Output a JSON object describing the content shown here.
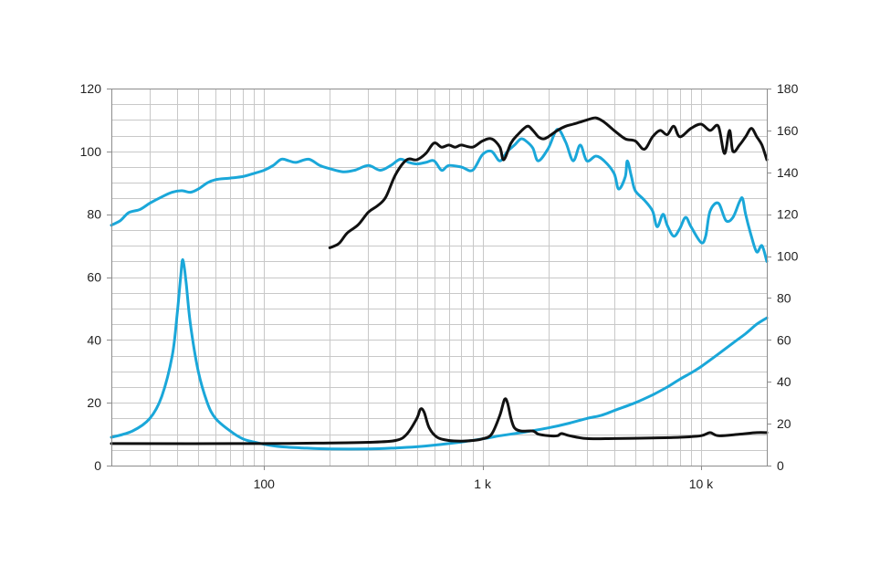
{
  "chart_data": {
    "type": "line",
    "title": "",
    "xlabel": "",
    "ylabel": "",
    "x_scale": "log",
    "xlim": [
      20,
      20000
    ],
    "ylim_left": [
      0,
      120
    ],
    "ylim_right": [
      0,
      180
    ],
    "grid": true,
    "legend": "none",
    "x_tick_labels": [
      {
        "value": 100,
        "label": "100"
      },
      {
        "value": 1000,
        "label": "1 k"
      },
      {
        "value": 10000,
        "label": "10 k"
      }
    ],
    "left_tick_labels": [
      "0",
      "20",
      "40",
      "60",
      "80",
      "100",
      "120"
    ],
    "right_tick_labels": [
      "0",
      "20",
      "40",
      "60",
      "80",
      "100",
      "120",
      "140",
      "160",
      "180"
    ],
    "colors": {
      "blue": "#1aa7d9",
      "black": "#111111",
      "grid": "#c8c8c8",
      "axis": "#8c8c8c"
    },
    "series": [
      {
        "axis": "left",
        "color": "#1aa7d9",
        "points": [
          [
            20,
            76.5
          ],
          [
            22,
            78
          ],
          [
            24,
            80.5
          ],
          [
            27,
            81.5
          ],
          [
            30,
            83.5
          ],
          [
            34,
            85.5
          ],
          [
            38,
            87
          ],
          [
            42,
            87.5
          ],
          [
            46,
            87
          ],
          [
            50,
            88
          ],
          [
            55,
            90
          ],
          [
            60,
            91
          ],
          [
            70,
            91.5
          ],
          [
            80,
            92
          ],
          [
            90,
            93
          ],
          [
            100,
            94
          ],
          [
            110,
            95.5
          ],
          [
            120,
            97.5
          ],
          [
            130,
            97
          ],
          [
            140,
            96.5
          ],
          [
            160,
            97.5
          ],
          [
            180,
            95.5
          ],
          [
            200,
            94.5
          ],
          [
            230,
            93.5
          ],
          [
            260,
            94
          ],
          [
            300,
            95.5
          ],
          [
            340,
            94
          ],
          [
            380,
            95.5
          ],
          [
            420,
            97.5
          ],
          [
            460,
            96.5
          ],
          [
            500,
            96
          ],
          [
            550,
            96.5
          ],
          [
            600,
            97
          ],
          [
            650,
            94
          ],
          [
            700,
            95.5
          ],
          [
            800,
            95
          ],
          [
            900,
            94
          ],
          [
            1000,
            99
          ],
          [
            1100,
            100
          ],
          [
            1200,
            97
          ],
          [
            1300,
            100
          ],
          [
            1400,
            102
          ],
          [
            1500,
            104
          ],
          [
            1600,
            103
          ],
          [
            1700,
            101
          ],
          [
            1800,
            97
          ],
          [
            2000,
            101
          ],
          [
            2200,
            107
          ],
          [
            2400,
            103
          ],
          [
            2600,
            97
          ],
          [
            2800,
            102
          ],
          [
            3000,
            97
          ],
          [
            3300,
            98.5
          ],
          [
            3600,
            97
          ],
          [
            4000,
            93
          ],
          [
            4200,
            88
          ],
          [
            4500,
            92
          ],
          [
            4600,
            97
          ],
          [
            4800,
            92
          ],
          [
            5000,
            87.5
          ],
          [
            5500,
            84.5
          ],
          [
            6000,
            81
          ],
          [
            6300,
            76
          ],
          [
            6700,
            80
          ],
          [
            7000,
            76.5
          ],
          [
            7500,
            73
          ],
          [
            8000,
            75.5
          ],
          [
            8500,
            79
          ],
          [
            9000,
            76
          ],
          [
            10000,
            71
          ],
          [
            10500,
            73
          ],
          [
            11000,
            81
          ],
          [
            12000,
            83.5
          ],
          [
            13000,
            78
          ],
          [
            14000,
            79
          ],
          [
            15000,
            84
          ],
          [
            15500,
            85
          ],
          [
            16000,
            80
          ],
          [
            17000,
            73
          ],
          [
            18000,
            68
          ],
          [
            19000,
            70
          ],
          [
            20000,
            65
          ]
        ]
      },
      {
        "axis": "left",
        "color": "#1aa7d9",
        "points": [
          [
            20,
            9
          ],
          [
            25,
            11
          ],
          [
            30,
            15
          ],
          [
            34,
            22
          ],
          [
            38,
            35
          ],
          [
            40,
            48
          ],
          [
            41.5,
            60
          ],
          [
            42.5,
            65.5
          ],
          [
            44,
            58
          ],
          [
            46,
            45
          ],
          [
            50,
            30
          ],
          [
            55,
            20
          ],
          [
            60,
            15
          ],
          [
            70,
            11
          ],
          [
            80,
            8.5
          ],
          [
            90,
            7.5
          ],
          [
            100,
            6.8
          ],
          [
            120,
            6
          ],
          [
            150,
            5.6
          ],
          [
            200,
            5.3
          ],
          [
            300,
            5.3
          ],
          [
            400,
            5.6
          ],
          [
            500,
            6
          ],
          [
            600,
            6.5
          ],
          [
            700,
            7
          ],
          [
            800,
            7.5
          ],
          [
            1000,
            8.5
          ],
          [
            1200,
            9.5
          ],
          [
            1500,
            10.5
          ],
          [
            2000,
            12
          ],
          [
            2500,
            13.5
          ],
          [
            3000,
            15
          ],
          [
            3500,
            16
          ],
          [
            4000,
            17.5
          ],
          [
            5000,
            20
          ],
          [
            6000,
            22.5
          ],
          [
            7000,
            25
          ],
          [
            8000,
            27.5
          ],
          [
            9000,
            29.5
          ],
          [
            10000,
            31.5
          ],
          [
            12000,
            35.5
          ],
          [
            14000,
            39
          ],
          [
            16000,
            42
          ],
          [
            18000,
            45
          ],
          [
            20000,
            47
          ]
        ]
      },
      {
        "axis": "right",
        "color": "#111111",
        "points": [
          [
            200,
            104
          ],
          [
            220,
            106
          ],
          [
            240,
            111
          ],
          [
            270,
            115
          ],
          [
            300,
            121
          ],
          [
            330,
            124
          ],
          [
            360,
            128
          ],
          [
            400,
            139
          ],
          [
            450,
            146
          ],
          [
            500,
            146
          ],
          [
            550,
            149
          ],
          [
            600,
            154
          ],
          [
            650,
            152
          ],
          [
            700,
            153
          ],
          [
            750,
            152
          ],
          [
            800,
            153
          ],
          [
            900,
            152
          ],
          [
            1000,
            155
          ],
          [
            1100,
            156
          ],
          [
            1200,
            152
          ],
          [
            1250,
            146
          ],
          [
            1350,
            154
          ],
          [
            1450,
            158
          ],
          [
            1600,
            162
          ],
          [
            1700,
            160
          ],
          [
            1800,
            157
          ],
          [
            1900,
            156
          ],
          [
            2000,
            157
          ],
          [
            2200,
            160
          ],
          [
            2400,
            162
          ],
          [
            2600,
            163
          ],
          [
            2800,
            164
          ],
          [
            3000,
            165
          ],
          [
            3300,
            166
          ],
          [
            3600,
            164
          ],
          [
            4000,
            160
          ],
          [
            4500,
            156
          ],
          [
            5000,
            155
          ],
          [
            5500,
            151
          ],
          [
            6000,
            157
          ],
          [
            6500,
            160
          ],
          [
            7000,
            158
          ],
          [
            7500,
            162
          ],
          [
            8000,
            157
          ],
          [
            9000,
            161
          ],
          [
            10000,
            163
          ],
          [
            11000,
            160
          ],
          [
            12000,
            162
          ],
          [
            12800,
            149
          ],
          [
            13500,
            160
          ],
          [
            14000,
            150
          ],
          [
            15000,
            153
          ],
          [
            16000,
            157
          ],
          [
            17000,
            161
          ],
          [
            18000,
            157
          ],
          [
            19000,
            153
          ],
          [
            20000,
            146
          ]
        ]
      },
      {
        "axis": "left",
        "color": "#111111",
        "points": [
          [
            20,
            7
          ],
          [
            100,
            7
          ],
          [
            200,
            7.2
          ],
          [
            300,
            7.4
          ],
          [
            400,
            8
          ],
          [
            450,
            10
          ],
          [
            500,
            15
          ],
          [
            520,
            18
          ],
          [
            540,
            17
          ],
          [
            570,
            12
          ],
          [
            620,
            9
          ],
          [
            700,
            8
          ],
          [
            800,
            7.8
          ],
          [
            900,
            8
          ],
          [
            1000,
            8.5
          ],
          [
            1100,
            10
          ],
          [
            1200,
            16
          ],
          [
            1260,
            21
          ],
          [
            1300,
            20
          ],
          [
            1350,
            15
          ],
          [
            1400,
            12
          ],
          [
            1500,
            11
          ],
          [
            1700,
            11
          ],
          [
            1800,
            10
          ],
          [
            2000,
            9.5
          ],
          [
            2200,
            9.5
          ],
          [
            2300,
            10.2
          ],
          [
            2500,
            9.5
          ],
          [
            3000,
            8.6
          ],
          [
            4000,
            8.6
          ],
          [
            6000,
            8.8
          ],
          [
            8000,
            9
          ],
          [
            10000,
            9.5
          ],
          [
            11000,
            10.5
          ],
          [
            12000,
            9.5
          ],
          [
            15000,
            10
          ],
          [
            18000,
            10.5
          ],
          [
            20000,
            10.5
          ]
        ]
      }
    ]
  }
}
